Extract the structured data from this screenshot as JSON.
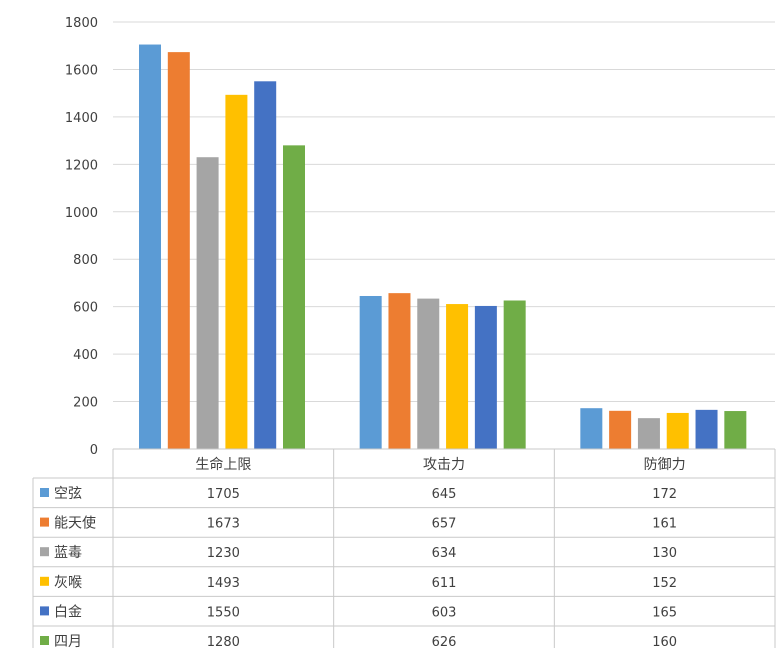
{
  "chart_data": {
    "type": "bar",
    "categories": [
      "生命上限",
      "攻击力",
      "防御力"
    ],
    "series": [
      {
        "name": "空弦",
        "color": "#5B9BD5",
        "values": [
          1705,
          645,
          172
        ],
        "labels": [
          "1705",
          "645",
          "172"
        ]
      },
      {
        "name": "能天使",
        "color": "#ED7D31",
        "values": [
          1673,
          657,
          161
        ],
        "labels": [
          "1673",
          "657",
          "161"
        ]
      },
      {
        "name": "蓝毒",
        "color": "#A5A5A5",
        "values": [
          1230,
          634,
          130
        ],
        "labels": [
          "1230",
          "634",
          "130"
        ]
      },
      {
        "name": "灰喉",
        "color": "#FFC000",
        "values": [
          1493,
          611,
          152
        ],
        "labels": [
          "1493",
          "611",
          "152"
        ]
      },
      {
        "name": "白金",
        "color": "#4472C4",
        "values": [
          1550,
          603,
          165
        ],
        "labels": [
          "1550",
          "603",
          "165"
        ]
      },
      {
        "name": "四月",
        "color": "#70AD47",
        "values": [
          1280,
          626,
          160
        ],
        "labels": [
          "1280",
          "626",
          "160"
        ]
      }
    ],
    "ylim": [
      0,
      1800
    ],
    "yticks": [
      0,
      200,
      400,
      600,
      800,
      1000,
      1200,
      1400,
      1600,
      1800
    ],
    "ytick_labels": [
      "0",
      "200",
      "400",
      "600",
      "800",
      "1000",
      "1200",
      "1400",
      "1600",
      "1800"
    ],
    "grid": true,
    "legend": "data-table"
  }
}
